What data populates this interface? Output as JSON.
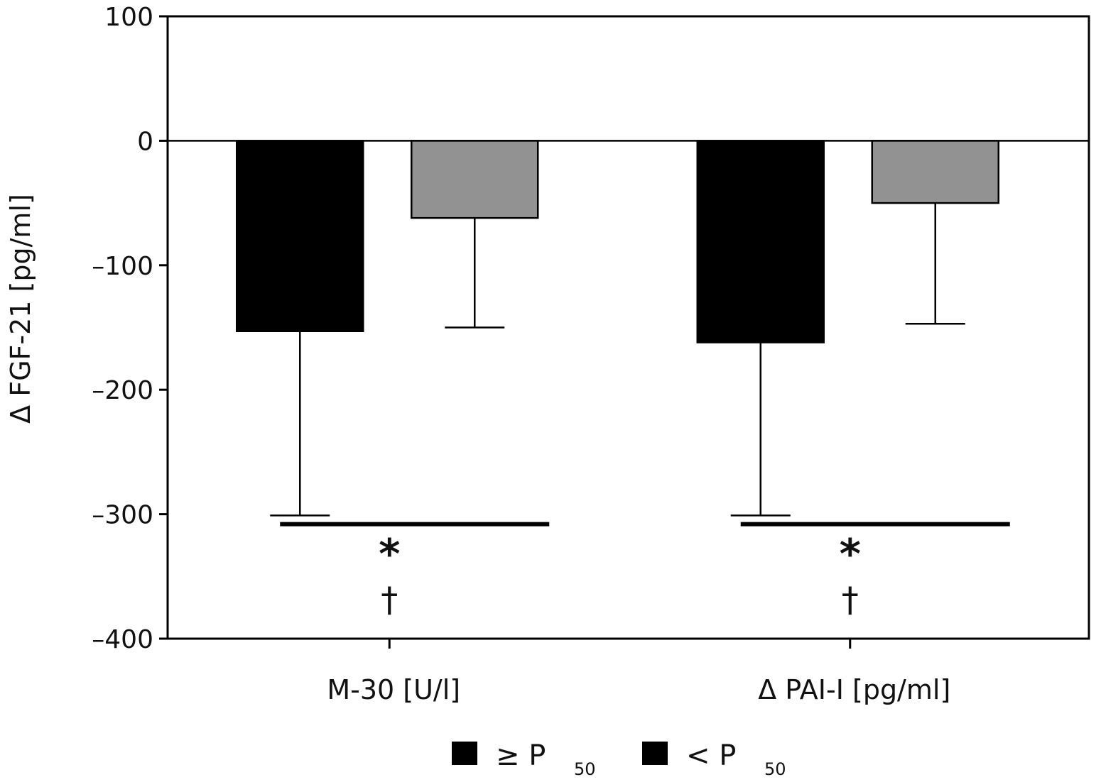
{
  "chart_data": {
    "type": "bar",
    "categories": [
      "M-30 [U/l]",
      "Δ PAI-I [pg/ml]"
    ],
    "series": [
      {
        "name": "≥ P50",
        "legend_symbol": "≥ P",
        "legend_sub": "50",
        "color": "#000000",
        "values": [
          -153,
          -162
        ],
        "error_lower": [
          -301,
          -301
        ]
      },
      {
        "name": "< P50",
        "legend_symbol": "< P",
        "legend_sub": "50",
        "color": "#929292",
        "values": [
          -62,
          -50
        ],
        "error_lower": [
          -150,
          -147
        ]
      }
    ],
    "ylabel": "Δ FGF-21 [pg/ml]",
    "xlabel": "",
    "ylim": [
      -400,
      100
    ],
    "yticks": [
      100,
      0,
      -100,
      -200,
      -300,
      -400
    ],
    "ytick_labels": [
      "100",
      "0",
      "–100",
      "–200",
      "–300",
      "–400"
    ],
    "zero_line": true,
    "legend_position": "bottom",
    "significance": [
      {
        "category": "M-30 [U/l]",
        "marks": [
          "*",
          "†"
        ]
      },
      {
        "category": "Δ PAI-I [pg/ml]",
        "marks": [
          "*",
          "†"
        ]
      }
    ]
  }
}
